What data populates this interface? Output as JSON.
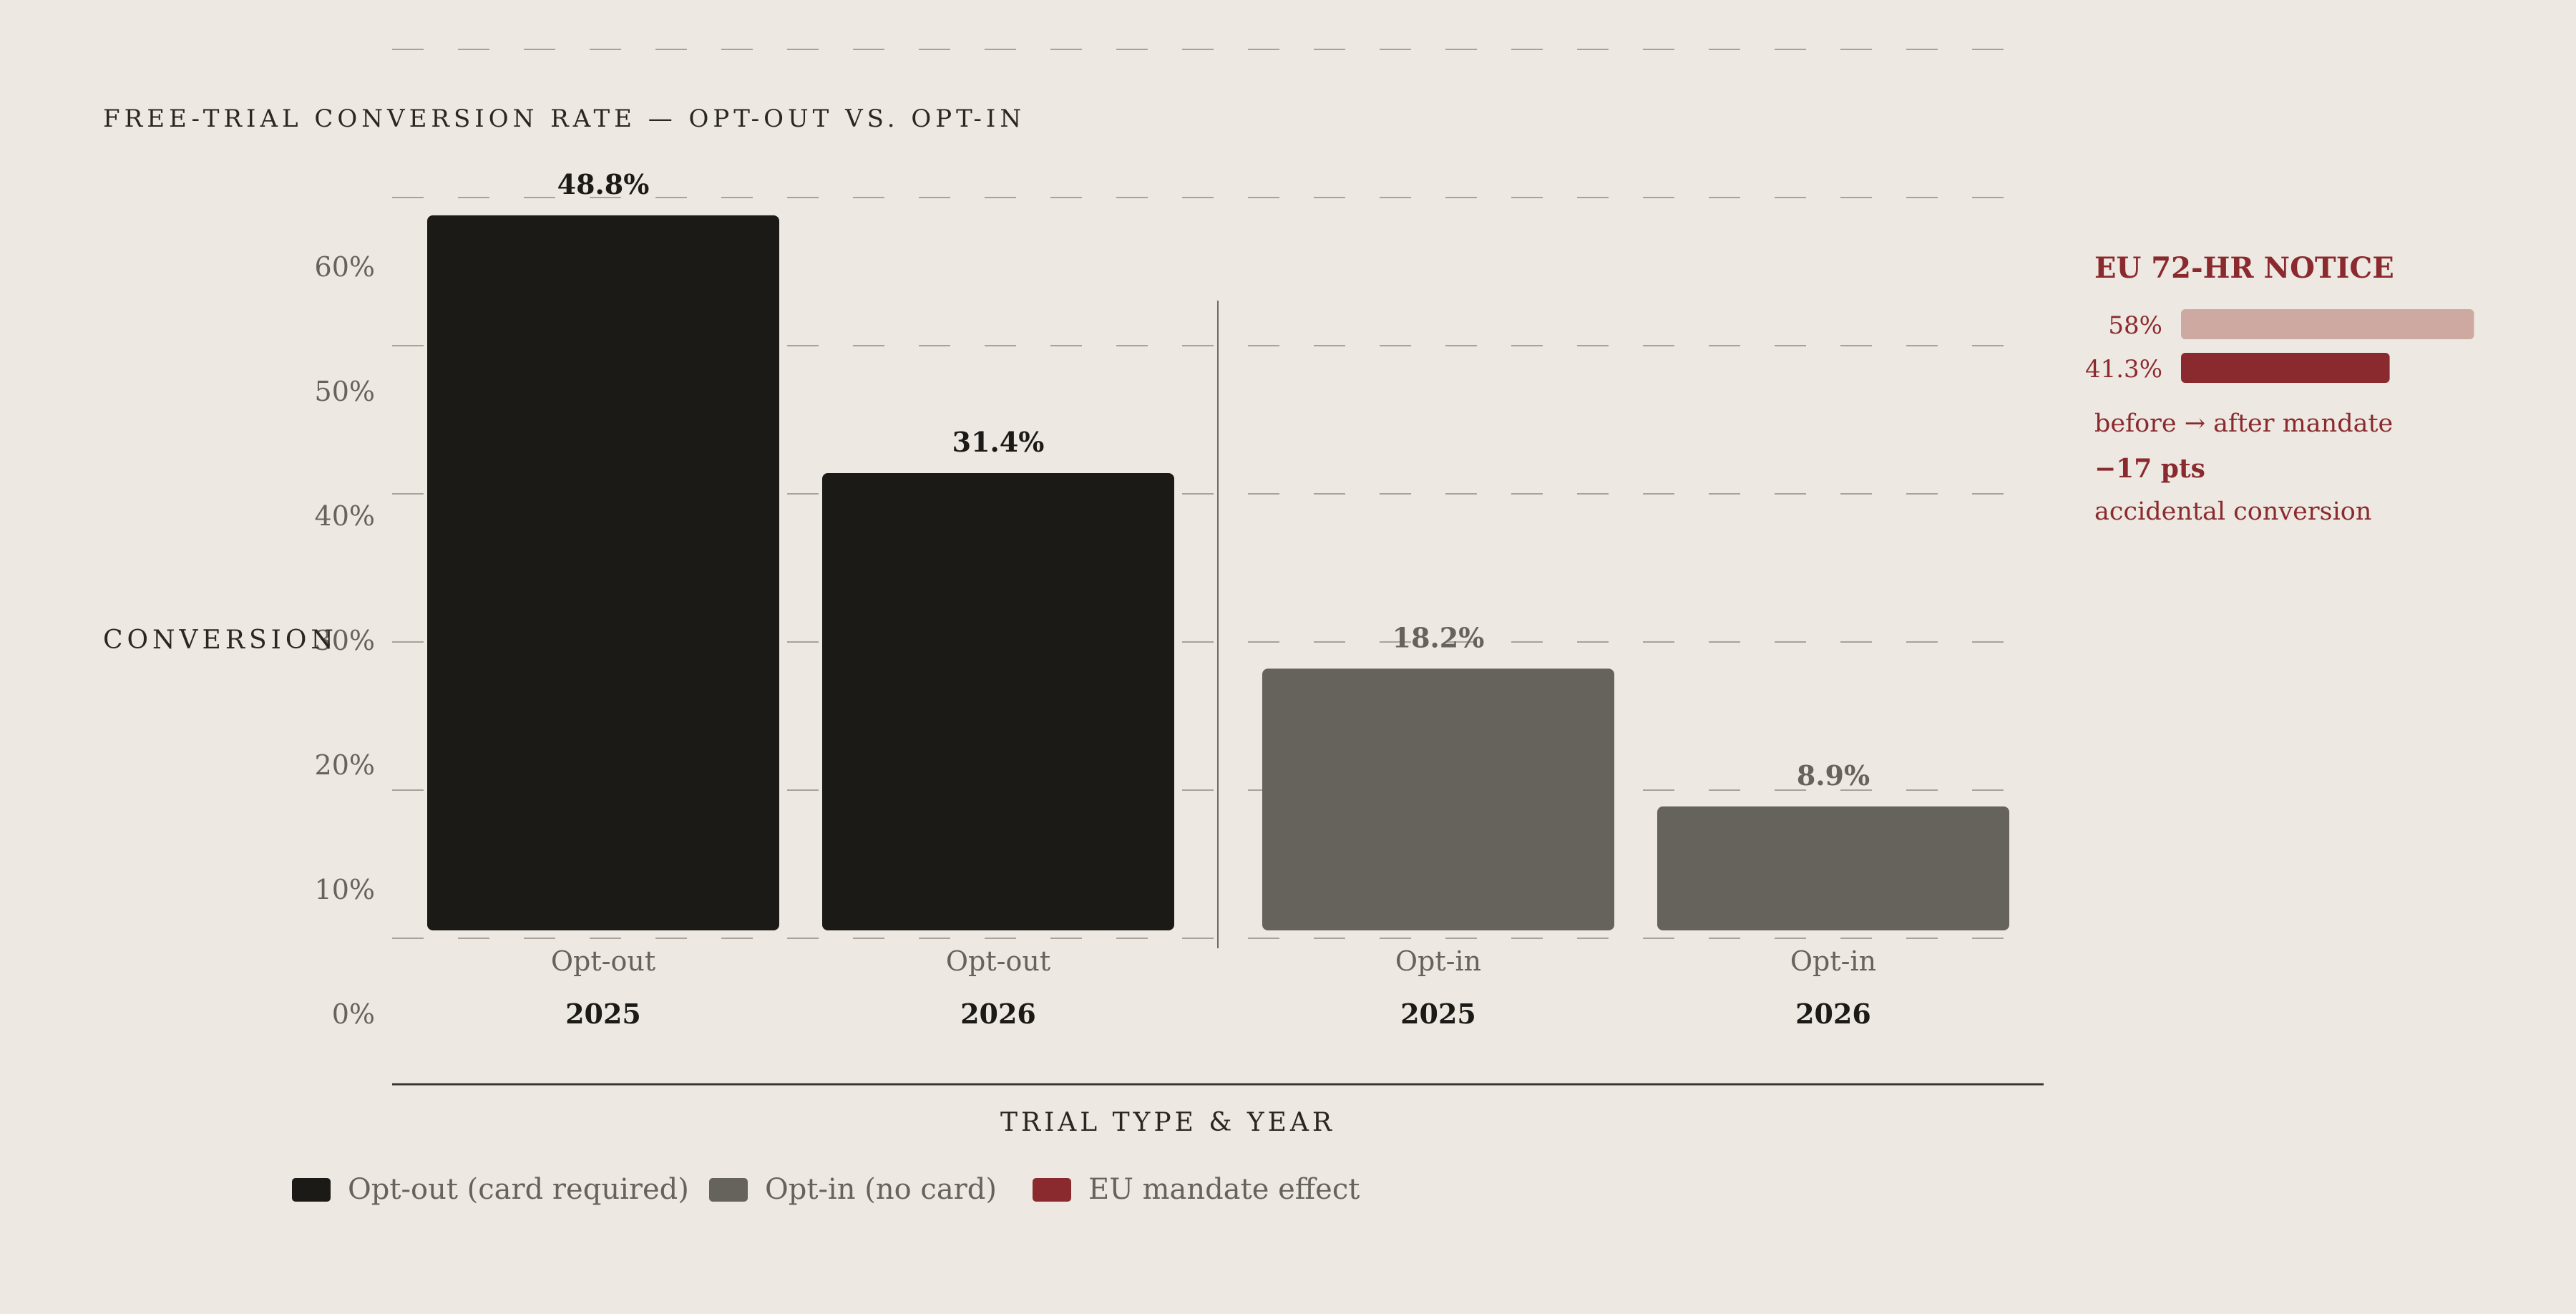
{
  "chart_data": {
    "type": "bar",
    "title": "FREE-TRIAL CONVERSION RATE — OPT-OUT VS. OPT-IN",
    "ylabel": "CONVERSION",
    "xlabel": "TRIAL TYPE & YEAR",
    "ylim": [
      0,
      60
    ],
    "yticks": [
      0,
      10,
      20,
      30,
      40,
      50,
      60
    ],
    "ytick_labels": [
      "0%",
      "10%",
      "20%",
      "30%",
      "40%",
      "50%",
      "60%"
    ],
    "grid": true,
    "bars": [
      {
        "group": "Opt-out",
        "year": "2025",
        "value": 48.8,
        "label": "48.8%",
        "series": "Opt-out (card required)"
      },
      {
        "group": "Opt-out",
        "year": "2026",
        "value": 31.4,
        "label": "31.4%",
        "series": "Opt-out (card required)"
      },
      {
        "group": "Opt-in",
        "year": "2025",
        "value": 18.2,
        "label": "18.2%",
        "series": "Opt-in (no card)"
      },
      {
        "group": "Opt-in",
        "year": "2026",
        "value": 8.9,
        "label": "8.9%",
        "series": "Opt-in (no card)"
      }
    ],
    "legend": [
      {
        "name": "Opt-out (card required)",
        "color": "#1c1a17"
      },
      {
        "name": "Opt-in (no card)",
        "color": "#66625c"
      },
      {
        "name": "EU mandate effect",
        "color": "#8b2a2e"
      }
    ],
    "legend_position": "bottom",
    "annotation": {
      "title": "EU 72-HR NOTICE",
      "bars": [
        {
          "label": "58%",
          "value": 58,
          "color": "#cea9a2"
        },
        {
          "label": "41.3%",
          "value": 41.3,
          "color": "#8b2a2e"
        }
      ],
      "caption": "before → after mandate",
      "delta": "−17 pts",
      "delta_caption": "accidental conversion"
    }
  },
  "colors": {
    "background": "#ede8e1",
    "optout": "#1c1a17",
    "optin": "#66625c",
    "accent": "#8b2a2e",
    "accent_light": "#cea9a2",
    "grid": "#a8a398",
    "muted_text": "#66625c"
  }
}
